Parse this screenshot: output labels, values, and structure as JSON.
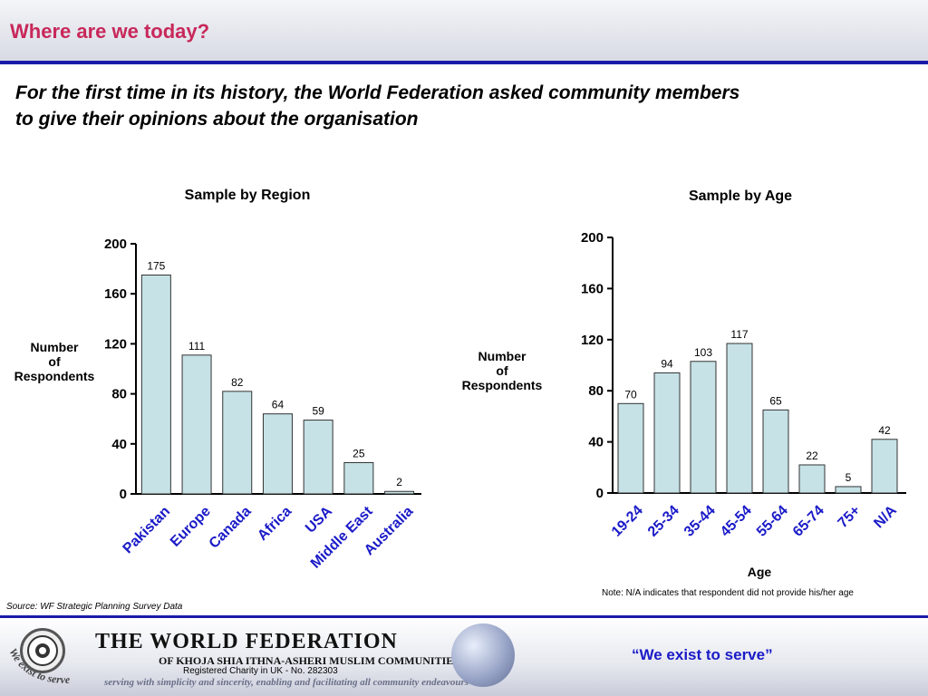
{
  "header": {
    "title": "Where are we today?",
    "subtitle_line1": "For the first time in its history, the World Federation asked community members",
    "subtitle_line2": "to give their opinions about the organisation"
  },
  "colors": {
    "title": "#c8285a",
    "bar_fill": "#c6e2e6",
    "bar_stroke": "#333333",
    "rule": "#1a1aa8",
    "slogan": "#1a1ac8"
  },
  "chart_data": [
    {
      "type": "bar",
      "title": "Sample by Region",
      "ylabel": "Number of Respondents",
      "ylabel_lines": [
        "Number",
        "of",
        "Respondents"
      ],
      "xlabel": "",
      "categories": [
        "Pakistan",
        "Europe",
        "Canada",
        "Africa",
        "USA",
        "Middle East",
        "Australia"
      ],
      "values": [
        175,
        111,
        82,
        64,
        59,
        25,
        2
      ],
      "ylim": [
        0,
        200
      ],
      "yticks": [
        0,
        40,
        80,
        120,
        160,
        200
      ],
      "grid": false,
      "legend": "none"
    },
    {
      "type": "bar",
      "title": "Sample by Age",
      "ylabel": "Number of Respondents",
      "ylabel_lines": [
        "Number",
        "of",
        "Respondents"
      ],
      "xlabel": "Age",
      "categories": [
        "19-24",
        "25-34",
        "35-44",
        "45-54",
        "55-64",
        "65-74",
        "75+",
        "N/A"
      ],
      "values": [
        70,
        94,
        103,
        117,
        65,
        22,
        5,
        42
      ],
      "ylim": [
        0,
        200
      ],
      "yticks": [
        0,
        40,
        80,
        120,
        160,
        200
      ],
      "grid": false,
      "legend": "none"
    }
  ],
  "notes": {
    "source": "Source: WF Strategic Planning Survey Data",
    "age_note": "Note: N/A indicates that respondent did not provide his/her age"
  },
  "footer": {
    "org_name": "THE WORLD FEDERATION",
    "org_sub": "OF KHOJA SHIA ITHNA-ASHERI MUSLIM COMMUNITIES",
    "charity": "Registered Charity in UK - No. 282303",
    "tagline": "serving with simplicity and sincerity, enabling and facilitating all community endeavours",
    "motto": "We exist to serve",
    "slogan": "“We exist to serve”"
  }
}
